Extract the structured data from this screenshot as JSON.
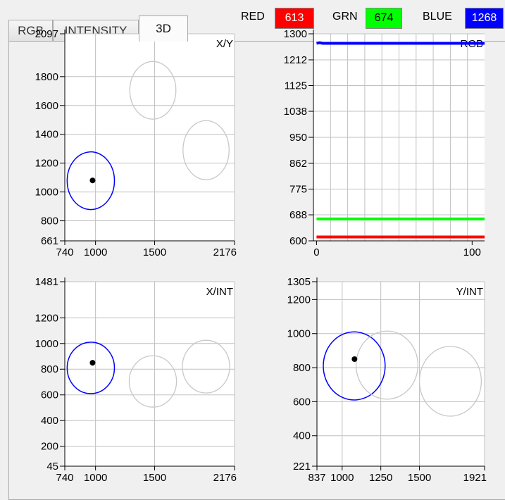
{
  "tabs": [
    {
      "label": "RGB",
      "active": false
    },
    {
      "label": "INTENSITY",
      "active": false
    },
    {
      "label": "3D",
      "active": true
    }
  ],
  "readouts": [
    {
      "label": "RED",
      "value": "613",
      "color": "#ff0000",
      "text_color": "#ffffff"
    },
    {
      "label": "GRN",
      "value": "674",
      "color": "#00ff00",
      "text_color": "#000000"
    },
    {
      "label": "BLUE",
      "value": "1268",
      "color": "#0000ff",
      "text_color": "#ffffff"
    }
  ],
  "colors": {
    "grid": "#c0c0c0",
    "blue": "#0000ff",
    "green": "#00ff00",
    "red": "#ff0000",
    "circle_gray": "#c8c8c8"
  },
  "chart_data": [
    {
      "id": "xy",
      "type": "scatter",
      "title": "X/Y",
      "x_ticks": [
        {
          "value": 740,
          "label": "740"
        },
        {
          "value": 1000,
          "label": "1000"
        },
        {
          "value": 1500,
          "label": "1500"
        },
        {
          "value": 2176,
          "label": "2176"
        }
      ],
      "y_ticks": [
        {
          "value": 661,
          "label": "661"
        },
        {
          "value": 800,
          "label": "800"
        },
        {
          "value": 1000,
          "label": "1000"
        },
        {
          "value": 1200,
          "label": "1200"
        },
        {
          "value": 1400,
          "label": "1400"
        },
        {
          "value": 1600,
          "label": "1600"
        },
        {
          "value": 1800,
          "label": "1800"
        },
        {
          "value": 2097,
          "label": "2097"
        }
      ],
      "xlim": [
        740,
        2176
      ],
      "ylim": [
        661,
        2097
      ],
      "circles": [
        {
          "x": 960,
          "y": 1078,
          "rx": 200,
          "ry": 200,
          "color": "blue"
        },
        {
          "x": 1485,
          "y": 1705,
          "rx": 195,
          "ry": 200,
          "color": "gray"
        },
        {
          "x": 1935,
          "y": 1290,
          "rx": 195,
          "ry": 205,
          "color": "gray"
        }
      ],
      "point": {
        "x": 975,
        "y": 1080
      }
    },
    {
      "id": "rgb",
      "type": "line",
      "title": "RGB",
      "x_ticks": [
        {
          "value": 0,
          "label": "0"
        },
        {
          "value": 100,
          "label": "100"
        }
      ],
      "y_ticks": [
        {
          "value": 600,
          "label": "600"
        },
        {
          "value": 688,
          "label": "688"
        },
        {
          "value": 775,
          "label": "775"
        },
        {
          "value": 862,
          "label": "862"
        },
        {
          "value": 950,
          "label": "950"
        },
        {
          "value": 1038,
          "label": "1038"
        },
        {
          "value": 1125,
          "label": "1125"
        },
        {
          "value": 1212,
          "label": "1212"
        },
        {
          "value": 1300,
          "label": "1300"
        }
      ],
      "xlim": [
        -2,
        108
      ],
      "ylim": [
        600,
        1300
      ],
      "series": [
        {
          "color": "blue",
          "values": [
            1268,
            1270,
            1268,
            1268,
            1268,
            1268,
            1268,
            1268
          ]
        },
        {
          "color": "green",
          "values": [
            674,
            674,
            674,
            674,
            674,
            674,
            674,
            674
          ]
        },
        {
          "color": "red",
          "values": [
            613,
            613,
            613,
            613,
            613,
            613,
            613,
            613
          ]
        }
      ],
      "series_x": [
        0,
        2,
        4,
        20,
        40,
        60,
        80,
        108
      ]
    },
    {
      "id": "xint",
      "type": "scatter",
      "title": "X/INT",
      "x_ticks": [
        {
          "value": 740,
          "label": "740"
        },
        {
          "value": 1000,
          "label": "1000"
        },
        {
          "value": 1500,
          "label": "1500"
        },
        {
          "value": 2176,
          "label": "2176"
        }
      ],
      "y_ticks": [
        {
          "value": 45,
          "label": "45"
        },
        {
          "value": 200,
          "label": "200"
        },
        {
          "value": 400,
          "label": "400"
        },
        {
          "value": 600,
          "label": "600"
        },
        {
          "value": 800,
          "label": "800"
        },
        {
          "value": 1000,
          "label": "1000"
        },
        {
          "value": 1200,
          "label": "1200"
        },
        {
          "value": 1481,
          "label": "1481"
        }
      ],
      "xlim": [
        740,
        2176
      ],
      "ylim": [
        45,
        1481
      ],
      "circles": [
        {
          "x": 960,
          "y": 810,
          "rx": 200,
          "ry": 200,
          "color": "blue"
        },
        {
          "x": 1485,
          "y": 705,
          "rx": 200,
          "ry": 200,
          "color": "gray"
        },
        {
          "x": 1935,
          "y": 820,
          "rx": 200,
          "ry": 205,
          "color": "gray"
        }
      ],
      "point": {
        "x": 975,
        "y": 850
      }
    },
    {
      "id": "yint",
      "type": "scatter",
      "title": "Y/INT",
      "x_ticks": [
        {
          "value": 837,
          "label": "837"
        },
        {
          "value": 1000,
          "label": "1000"
        },
        {
          "value": 1250,
          "label": "1250"
        },
        {
          "value": 1500,
          "label": "1500"
        },
        {
          "value": 1921,
          "label": "1921"
        }
      ],
      "y_ticks": [
        {
          "value": 221,
          "label": "221"
        },
        {
          "value": 400,
          "label": "400"
        },
        {
          "value": 600,
          "label": "600"
        },
        {
          "value": 800,
          "label": "800"
        },
        {
          "value": 1000,
          "label": "1000"
        },
        {
          "value": 1200,
          "label": "1200"
        },
        {
          "value": 1305,
          "label": "1305"
        }
      ],
      "xlim": [
        837,
        1921
      ],
      "ylim": [
        221,
        1305
      ],
      "circles": [
        {
          "x": 1078,
          "y": 810,
          "rx": 200,
          "ry": 200,
          "color": "blue"
        },
        {
          "x": 1290,
          "y": 815,
          "rx": 200,
          "ry": 200,
          "color": "gray"
        },
        {
          "x": 1700,
          "y": 720,
          "rx": 200,
          "ry": 205,
          "color": "gray"
        }
      ],
      "point": {
        "x": 1080,
        "y": 850
      }
    }
  ]
}
